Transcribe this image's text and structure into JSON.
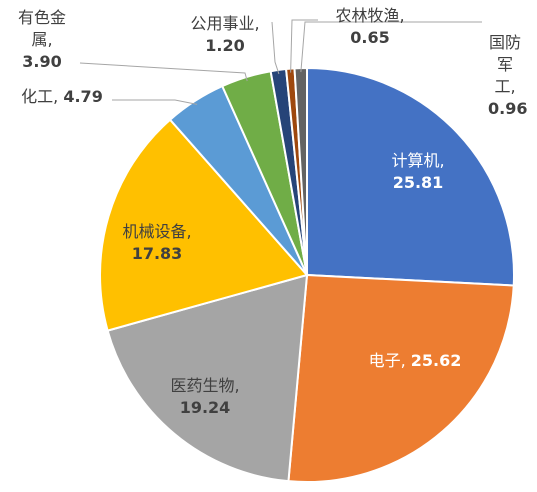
{
  "chart_data": {
    "type": "pie",
    "categories": [
      "计算机,",
      "电子,",
      "医药生物,",
      "机械设备,",
      "化工,",
      "有色金属,",
      "公用事业,",
      "农林牧渔,",
      "国防军工,"
    ],
    "values": [
      25.81,
      25.62,
      19.24,
      17.83,
      4.79,
      3.9,
      1.2,
      0.65,
      0.96
    ],
    "value_labels": [
      "25.81",
      "25.62",
      "19.24",
      "17.83",
      "4.79",
      "3.90",
      "1.20",
      "0.65",
      "0.96"
    ],
    "colors": [
      "#4472c4",
      "#ed7d31",
      "#a5a5a5",
      "#ffc000",
      "#5b9bd5",
      "#70ad47",
      "#264478",
      "#9e480e",
      "#636363"
    ]
  }
}
